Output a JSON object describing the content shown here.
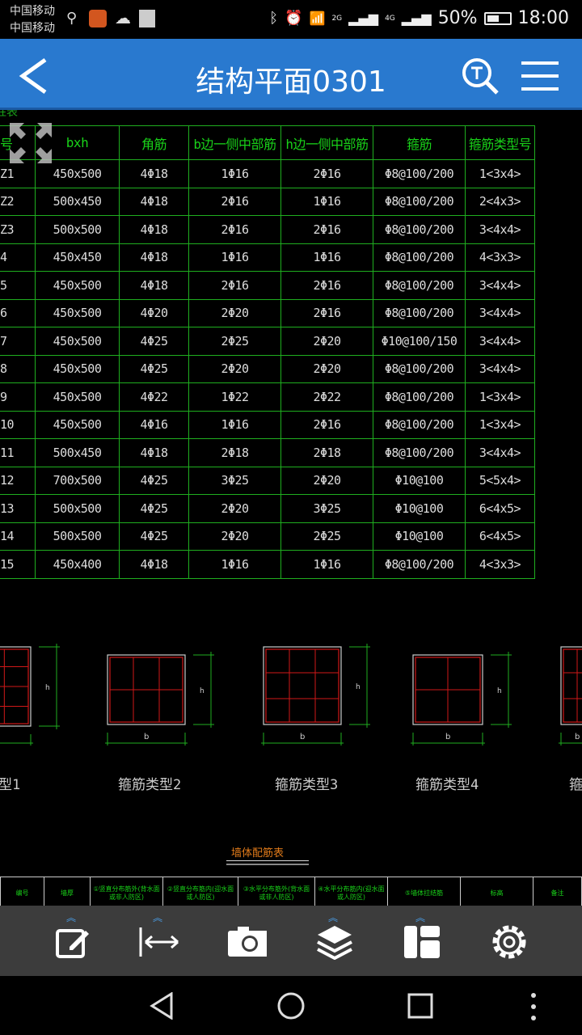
{
  "status": {
    "carrier1": "中国移动",
    "carrier2": "中国移动",
    "net2g": "2G",
    "net4g": "4G",
    "battery": "50%",
    "time": "18:00"
  },
  "appbar": {
    "title": "结构平面0301"
  },
  "column_table": {
    "caption": "柱表",
    "headers": [
      "号",
      "bxh",
      "角筋",
      "b边一侧中部筋",
      "h边一侧中部筋",
      "箍筋",
      "箍筋类型号"
    ],
    "rows": [
      [
        "Z1",
        "450x500",
        "4Φ18",
        "1Φ16",
        "2Φ16",
        "Φ8@100/200",
        "1<3x4>"
      ],
      [
        "Z2",
        "500x450",
        "4Φ18",
        "2Φ16",
        "1Φ16",
        "Φ8@100/200",
        "2<4x3>"
      ],
      [
        "Z3",
        "500x500",
        "4Φ18",
        "2Φ16",
        "2Φ16",
        "Φ8@100/200",
        "3<4x4>"
      ],
      [
        "4",
        "450x450",
        "4Φ18",
        "1Φ16",
        "1Φ16",
        "Φ8@100/200",
        "4<3x3>"
      ],
      [
        "5",
        "450x500",
        "4Φ18",
        "2Φ16",
        "2Φ16",
        "Φ8@100/200",
        "3<4x4>"
      ],
      [
        "6",
        "450x500",
        "4Φ20",
        "2Φ20",
        "2Φ16",
        "Φ8@100/200",
        "3<4x4>"
      ],
      [
        "7",
        "450x500",
        "4Φ25",
        "2Φ25",
        "2Φ20",
        "Φ10@100/150",
        "3<4x4>"
      ],
      [
        "8",
        "450x500",
        "4Φ25",
        "2Φ20",
        "2Φ20",
        "Φ8@100/200",
        "3<4x4>"
      ],
      [
        "9",
        "450x500",
        "4Φ22",
        "1Φ22",
        "2Φ22",
        "Φ8@100/200",
        "1<3x4>"
      ],
      [
        "10",
        "450x500",
        "4Φ16",
        "1Φ16",
        "2Φ16",
        "Φ8@100/200",
        "1<3x4>"
      ],
      [
        "11",
        "500x450",
        "4Φ18",
        "2Φ18",
        "2Φ18",
        "Φ8@100/200",
        "3<4x4>"
      ],
      [
        "12",
        "700x500",
        "4Φ25",
        "3Φ25",
        "2Φ20",
        "Φ10@100",
        "5<5x4>"
      ],
      [
        "13",
        "500x500",
        "4Φ25",
        "2Φ20",
        "3Φ25",
        "Φ10@100",
        "6<4x5>"
      ],
      [
        "14",
        "500x500",
        "4Φ25",
        "2Φ20",
        "2Φ25",
        "Φ10@100",
        "6<4x5>"
      ],
      [
        "15",
        "450x400",
        "4Φ18",
        "1Φ16",
        "1Φ16",
        "Φ8@100/200",
        "4<3x3>"
      ]
    ]
  },
  "stirrup_labels": [
    "型1",
    "箍筋类型2",
    "箍筋类型3",
    "箍筋类型4",
    "箍"
  ],
  "dim_labels": {
    "b": "b",
    "h": "h"
  },
  "wall_table": {
    "title": "墙体配筋表",
    "headers": [
      "编号",
      "墙厚",
      "①竖直分布筋外(背水面或非人防区)",
      "②竖直分布筋内(迎水面或人防区)",
      "③水平分布筋外(背水面或非人防区)",
      "④水平分布筋内(迎水面或人防区)",
      "⑤墙体拉结筋",
      "标高",
      "备注"
    ]
  },
  "toolbar": {
    "items": [
      "edit",
      "measure",
      "camera",
      "layers",
      "layout",
      "settings"
    ]
  },
  "colors": {
    "appbar": "#2979cf",
    "grid": "#1fae1f",
    "header_text": "#19d219",
    "rebar": "#d01818"
  }
}
